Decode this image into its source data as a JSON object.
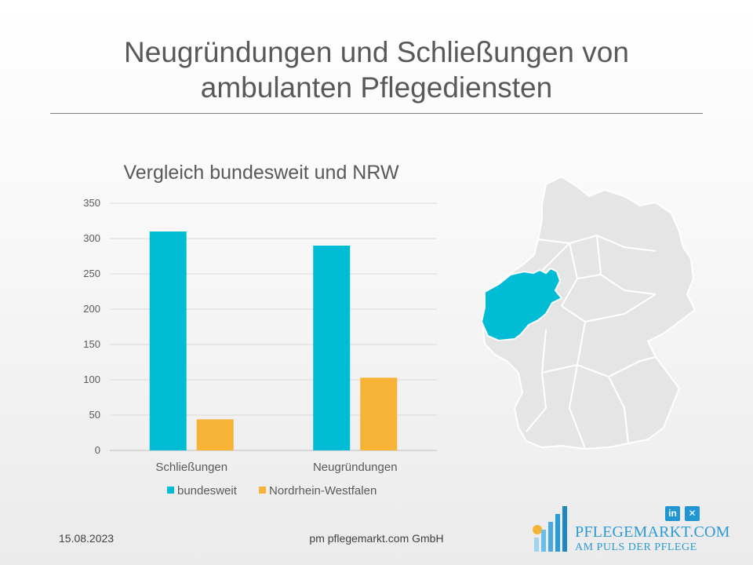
{
  "slide": {
    "title": "Neugründungen und Schließungen von ambulanten Pflegediensten",
    "footer_date": "15.08.2023",
    "footer_company": "pm pflegemarkt.com GmbH",
    "brand_name": "PFLEGEMARKT.COM",
    "brand_tagline": "AM PULS DER PFLEGE",
    "social": [
      {
        "name": "linkedin-icon",
        "label": "in"
      },
      {
        "name": "xing-icon",
        "label": "✕"
      }
    ]
  },
  "chart_data": {
    "type": "bar",
    "title": "Vergleich bundesweit und NRW",
    "categories": [
      "Schließungen",
      "Neugründungen"
    ],
    "series": [
      {
        "name": "bundesweit",
        "values": [
          310,
          290
        ],
        "color": "#00bcd4"
      },
      {
        "name": "Nordrhein-Westfalen",
        "values": [
          44,
          103
        ],
        "color": "#f6b335"
      }
    ],
    "ylim": [
      0,
      350
    ],
    "yticks": [
      0,
      50,
      100,
      150,
      200,
      250,
      300,
      350
    ],
    "grid": true,
    "legend_position": "bottom"
  },
  "map": {
    "highlight_region": "Nordrhein-Westfalen",
    "highlight_color": "#00bcd4",
    "base_color": "#e6e6e6"
  }
}
